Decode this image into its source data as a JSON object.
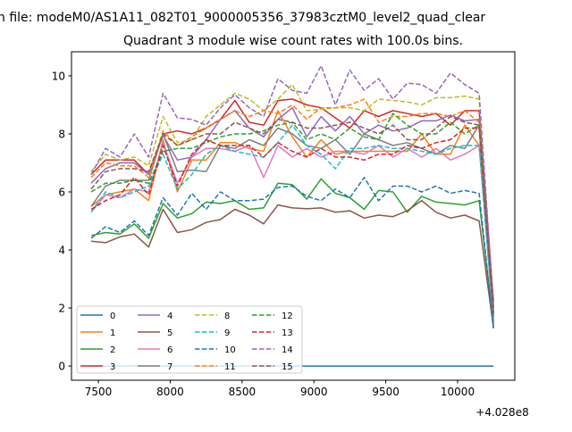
{
  "chart_data": {
    "type": "line",
    "suptitle": "n file: modeM0/AS1A11_082T01_9000005356_37983cztM0_level2_quad_clear",
    "title": "Quadrant 3 module wise count rates with 100.0s bins.",
    "xlabel": "",
    "ylabel": "",
    "x_offset_label": "+4.028e8",
    "xlim": [
      7313,
      10398
    ],
    "ylim": [
      -0.49,
      10.83
    ],
    "xticks": [
      7500,
      8000,
      8500,
      9000,
      9500,
      10000
    ],
    "yticks": [
      0,
      2,
      4,
      6,
      8,
      10
    ],
    "grid": false,
    "legend_placement": "lower-left",
    "x": [
      7450,
      7550,
      7650,
      7750,
      7850,
      7950,
      8050,
      8150,
      8250,
      8350,
      8450,
      8550,
      8650,
      8750,
      8850,
      8950,
      9050,
      9150,
      9250,
      9350,
      9450,
      9550,
      9650,
      9750,
      9850,
      9950,
      10050,
      10150,
      10250
    ],
    "series": [
      {
        "name": "0",
        "color": "#1f77b4",
        "dash": false,
        "values": [
          0,
          0,
          0,
          0,
          0,
          0,
          0,
          0,
          0,
          0,
          0,
          0,
          0,
          0,
          0,
          0,
          0,
          0,
          0,
          0,
          0,
          0,
          0,
          0,
          0,
          0,
          0,
          0,
          0
        ]
      },
      {
        "name": "1",
        "color": "#ff7f0e",
        "dash": false,
        "values": [
          5.5,
          5.9,
          6.0,
          6.1,
          5.7,
          7.8,
          6.0,
          7.1,
          7.1,
          7.7,
          7.7,
          7.5,
          7.4,
          8.8,
          7.9,
          7.2,
          7.8,
          7.3,
          7.4,
          7.4,
          7.4,
          7.4,
          7.4,
          8.0,
          7.3,
          7.3,
          8.3,
          7.6,
          1.6
        ]
      },
      {
        "name": "2",
        "color": "#2ca02c",
        "dash": false,
        "values": [
          4.5,
          4.6,
          4.55,
          4.9,
          4.4,
          5.6,
          5.1,
          5.25,
          5.65,
          5.6,
          5.7,
          5.4,
          5.45,
          6.3,
          6.25,
          5.75,
          6.45,
          5.95,
          5.8,
          5.4,
          6.05,
          6.0,
          5.3,
          5.85,
          5.65,
          5.6,
          5.55,
          5.7,
          1.4
        ]
      },
      {
        "name": "3",
        "color": "#d62728",
        "dash": false,
        "values": [
          6.6,
          7.1,
          7.1,
          7.1,
          6.6,
          8.0,
          8.1,
          8.0,
          8.2,
          8.5,
          9.15,
          8.4,
          8.3,
          9.15,
          9.2,
          9.0,
          8.9,
          8.55,
          8.2,
          8.8,
          8.6,
          8.8,
          8.7,
          8.6,
          8.7,
          8.3,
          8.8,
          8.8,
          2.2
        ]
      },
      {
        "name": "4",
        "color": "#9467bd",
        "dash": false,
        "values": [
          6.3,
          6.8,
          7.0,
          7.0,
          6.6,
          7.95,
          7.1,
          7.2,
          7.8,
          8.5,
          8.8,
          8.2,
          7.9,
          8.5,
          8.9,
          7.9,
          8.6,
          8.1,
          8.6,
          8.0,
          8.3,
          8.1,
          8.2,
          8.45,
          8.45,
          8.65,
          8.45,
          8.5,
          2.0
        ]
      },
      {
        "name": "5",
        "color": "#8c564b",
        "dash": false,
        "values": [
          4.3,
          4.25,
          4.45,
          4.55,
          4.1,
          5.4,
          4.6,
          4.7,
          4.95,
          5.05,
          5.4,
          5.2,
          4.9,
          5.55,
          5.45,
          5.42,
          5.45,
          5.3,
          5.35,
          5.1,
          5.2,
          5.15,
          5.35,
          5.7,
          5.3,
          5.1,
          5.2,
          5.0,
          1.3
        ]
      },
      {
        "name": "6",
        "color": "#e377c2",
        "dash": false,
        "values": [
          5.3,
          5.9,
          5.8,
          6.1,
          6.0,
          7.7,
          6.3,
          7.2,
          7.5,
          7.5,
          7.4,
          7.6,
          6.5,
          7.6,
          7.2,
          7.5,
          7.2,
          7.4,
          7.4,
          7.3,
          7.6,
          7.2,
          7.5,
          7.2,
          7.5,
          7.1,
          7.3,
          7.6,
          1.5
        ]
      },
      {
        "name": "7",
        "color": "#7f7f7f",
        "dash": false,
        "values": [
          5.5,
          6.2,
          6.4,
          6.4,
          6.4,
          8.0,
          6.7,
          6.75,
          6.7,
          7.6,
          7.5,
          7.8,
          7.6,
          8.2,
          8.0,
          7.6,
          7.5,
          7.8,
          7.3,
          8.0,
          7.8,
          7.6,
          7.7,
          7.5,
          7.3,
          7.6,
          7.5,
          8.3,
          1.7
        ]
      },
      {
        "name": "8",
        "color": "#bcbd22",
        "dash": true,
        "values": [
          6.7,
          7.3,
          7.1,
          7.2,
          6.9,
          8.6,
          7.7,
          7.8,
          8.6,
          9.0,
          9.4,
          9.2,
          8.8,
          9.2,
          9.7,
          8.8,
          8.85,
          8.9,
          8.9,
          8.8,
          9.2,
          9.15,
          9.1,
          9.0,
          9.25,
          9.25,
          9.3,
          9.2,
          2.0
        ]
      },
      {
        "name": "9",
        "color": "#17becf",
        "dash": true,
        "values": [
          5.3,
          6.0,
          5.8,
          6.0,
          6.2,
          7.3,
          6.1,
          6.6,
          7.3,
          7.6,
          7.4,
          7.3,
          7.2,
          7.7,
          8.3,
          7.6,
          7.3,
          6.8,
          7.5,
          7.5,
          7.6,
          7.5,
          7.5,
          7.4,
          7.3,
          7.5,
          7.6,
          7.6,
          1.5
        ]
      },
      {
        "name": "10",
        "color": "#1f77b4",
        "dash": true,
        "values": [
          4.4,
          4.8,
          4.6,
          5.0,
          4.5,
          5.8,
          5.2,
          5.95,
          5.4,
          6.0,
          5.7,
          5.7,
          5.75,
          6.15,
          6.2,
          5.85,
          5.7,
          6.1,
          5.8,
          6.5,
          5.7,
          6.2,
          6.2,
          6.0,
          6.2,
          5.95,
          6.05,
          5.95,
          1.3
        ]
      },
      {
        "name": "11",
        "color": "#ff7f0e",
        "dash": true,
        "values": [
          6.5,
          7.0,
          6.9,
          6.9,
          6.5,
          8.1,
          7.6,
          7.9,
          8.2,
          8.5,
          8.8,
          8.6,
          8.8,
          8.7,
          9.0,
          8.5,
          8.9,
          8.9,
          9.0,
          9.2,
          8.4,
          8.6,
          8.6,
          8.7,
          8.7,
          8.6,
          8.8,
          8.4,
          2.0
        ]
      },
      {
        "name": "12",
        "color": "#2ca02c",
        "dash": true,
        "values": [
          6.0,
          6.3,
          6.3,
          6.4,
          6.3,
          7.4,
          7.5,
          7.5,
          7.7,
          7.9,
          8.0,
          8.0,
          8.1,
          8.3,
          8.4,
          7.8,
          8.0,
          7.8,
          8.2,
          7.9,
          7.8,
          8.7,
          8.3,
          8.0,
          8.0,
          8.4,
          8.0,
          8.3,
          1.8
        ]
      },
      {
        "name": "13",
        "color": "#d62728",
        "dash": true,
        "values": [
          5.4,
          5.7,
          5.9,
          6.5,
          5.9,
          7.6,
          6.2,
          7.3,
          7.8,
          7.6,
          7.6,
          7.6,
          7.2,
          7.7,
          7.4,
          7.2,
          7.5,
          7.2,
          7.2,
          7.1,
          7.3,
          7.3,
          7.6,
          7.5,
          7.7,
          7.8,
          8.2,
          8.2,
          1.8
        ]
      },
      {
        "name": "14",
        "color": "#9467bd",
        "dash": true,
        "values": [
          6.6,
          7.5,
          7.2,
          8.0,
          7.2,
          9.4,
          8.55,
          8.5,
          8.3,
          8.9,
          9.35,
          8.9,
          8.6,
          9.9,
          9.5,
          9.4,
          10.35,
          9.0,
          10.2,
          9.5,
          9.9,
          9.2,
          9.75,
          9.7,
          9.4,
          10.1,
          9.7,
          9.4,
          2.0
        ]
      },
      {
        "name": "15",
        "color": "#8c564b",
        "dash": true,
        "values": [
          6.1,
          6.7,
          6.8,
          6.8,
          6.7,
          8.0,
          7.6,
          7.8,
          8.0,
          8.0,
          8.4,
          8.2,
          8.0,
          8.5,
          8.4,
          8.2,
          8.2,
          8.3,
          8.4,
          8.2,
          8.0,
          8.3,
          7.8,
          7.8,
          8.2,
          8.6,
          8.4,
          8.3,
          1.9
        ]
      }
    ]
  }
}
